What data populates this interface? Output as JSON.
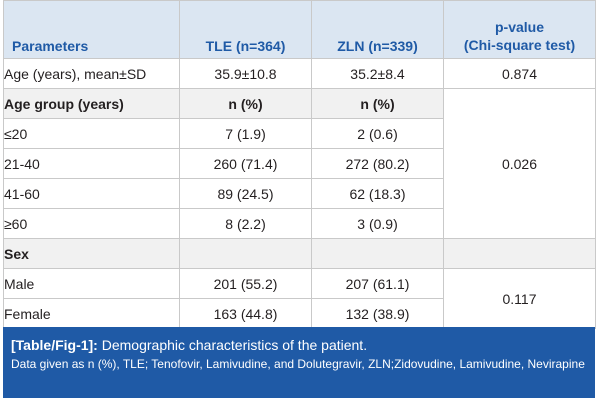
{
  "table": {
    "headers": {
      "parameters": "Parameters",
      "tle": "TLE (n=364)",
      "zln": "ZLN (n=339)",
      "pvalue_line1": "p-value",
      "pvalue_line2": "(Chi-square test)"
    },
    "age": {
      "label": "Age (years), mean±SD",
      "tle": "35.9±10.8",
      "zln": "35.2±8.4",
      "p": "0.874"
    },
    "age_group": {
      "label": "Age group (years)",
      "tle": "n (%)",
      "zln": "n (%)",
      "p": "0.026",
      "rows": [
        {
          "label": "≤20",
          "tle": "7 (1.9)",
          "zln": "2 (0.6)"
        },
        {
          "label": "21-40",
          "tle": "260 (71.4)",
          "zln": "272 (80.2)"
        },
        {
          "label": "41-60",
          "tle": "89 (24.5)",
          "zln": "62 (18.3)"
        },
        {
          "label": "≥60",
          "tle": "8 (2.2)",
          "zln": "3 (0.9)"
        }
      ]
    },
    "sex": {
      "label": "Sex",
      "p": "0.117",
      "rows": [
        {
          "label": "Male",
          "tle": "201 (55.2)",
          "zln": "207 (61.1)"
        },
        {
          "label": "Female",
          "tle": "163 (44.8)",
          "zln": "132 (38.9)"
        }
      ]
    }
  },
  "caption": {
    "tag": "[Table/Fig-1]:",
    "title": " Demographic characteristics of the patient.",
    "note": "Data given as n (%), TLE; Tenofovir, Lamivudine, and Dolutegravir, ZLN;Zidovudine, Lamivudine, Nevirapine"
  }
}
